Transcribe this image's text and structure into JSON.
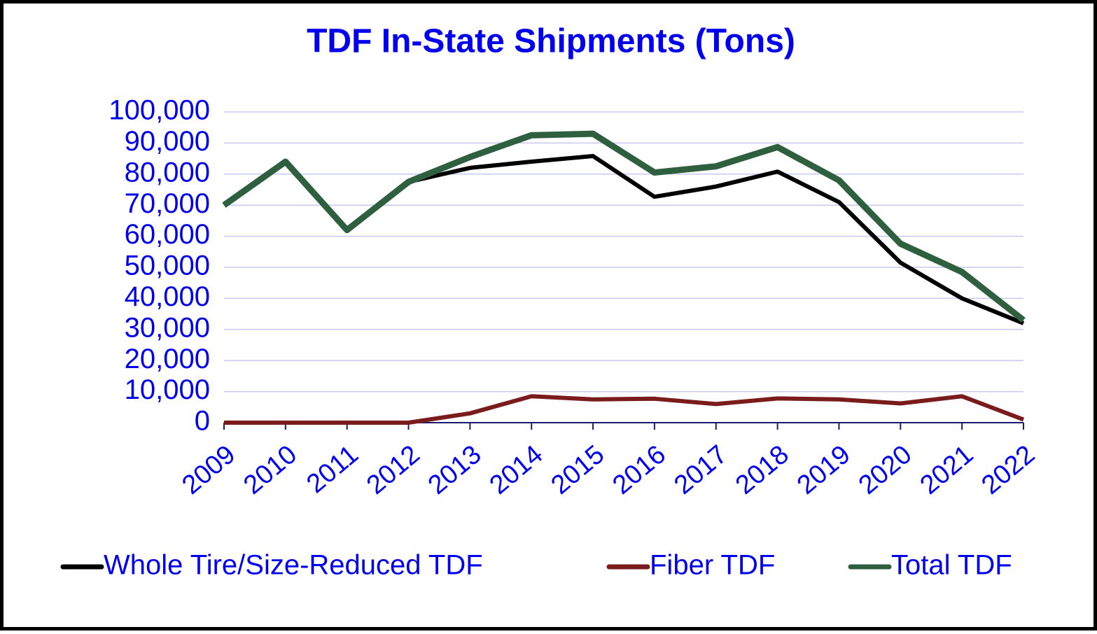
{
  "chart_data": {
    "type": "line",
    "title": "TDF In-State Shipments (Tons)",
    "categories": [
      "2009",
      "2010",
      "2011",
      "2012",
      "2013",
      "2014",
      "2015",
      "2016",
      "2017",
      "2018",
      "2019",
      "2020",
      "2021",
      "2022"
    ],
    "series": [
      {
        "name": "Whole Tire/Size-Reduced TDF",
        "color": "#000000",
        "values": [
          70000,
          84000,
          62000,
          77500,
          82000,
          84000,
          85800,
          72700,
          76000,
          80800,
          71000,
          51500,
          40000,
          32000
        ]
      },
      {
        "name": "Fiber TDF",
        "color": "#7b1c1c",
        "values": [
          0,
          0,
          0,
          0,
          3000,
          8500,
          7500,
          7700,
          6000,
          7800,
          7500,
          6200,
          8500,
          1000
        ]
      },
      {
        "name": "Total TDF",
        "color": "#2e6040",
        "values": [
          70000,
          84000,
          62000,
          77500,
          85500,
          92500,
          93000,
          80500,
          82500,
          88700,
          78000,
          57600,
          48500,
          33000
        ]
      }
    ],
    "ylim": [
      0,
      100000
    ],
    "yticks": [
      0,
      {
        "value": 10000,
        "label": "10,000"
      },
      {
        "value": 20000,
        "label": "20,000"
      },
      {
        "value": 30000,
        "label": "30,000"
      },
      {
        "value": 40000,
        "label": "40,000"
      },
      {
        "value": 50000,
        "label": "50,000"
      },
      {
        "value": 60000,
        "label": "60,000"
      },
      {
        "value": 70000,
        "label": "70,000"
      },
      {
        "value": 80000,
        "label": "80,000"
      },
      {
        "value": 90000,
        "label": "90,000"
      },
      {
        "value": 100000,
        "label": "100,000"
      }
    ],
    "grid": true,
    "legend": "bottom"
  }
}
